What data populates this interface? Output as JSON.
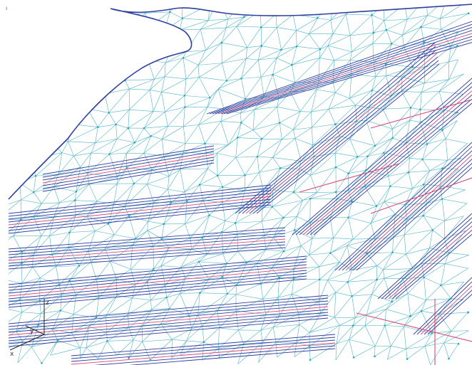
{
  "viewport": {
    "corner_mark": "ı",
    "axis_triad": {
      "z_label": "z",
      "y_label": "y",
      "x_label": "x"
    }
  },
  "colors": {
    "background": "#ffffff",
    "mesh_edge": "#4fb3c8",
    "contour": "#2f3f9e",
    "feature_line": "#d64a7a",
    "boundary": "#2f3f9e",
    "node": "#2aa7b8",
    "axis": "#222222"
  }
}
